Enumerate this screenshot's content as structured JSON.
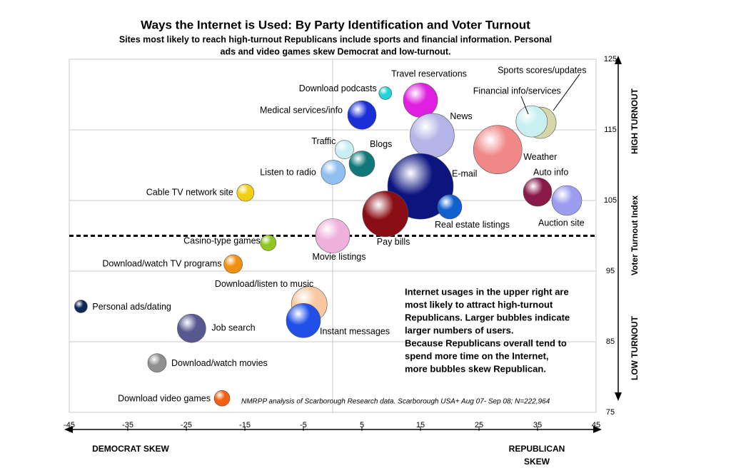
{
  "chart_data": {
    "type": "bubble",
    "title": "Ways the Internet is Used: By Party Identification and Voter Turnout",
    "subtitle": [
      "Sites most likely to reach high-turnout Republicans include sports and financial information. Personal",
      "ads and video games skew Democrat and low-turnout."
    ],
    "y_label": "Voter Turnout Index",
    "y_high_label": "HIGH  TURNOUT",
    "y_low_label": "LOW  TURNOUT",
    "x_left_label": "DEMOCRAT SKEW",
    "x_right_label": [
      "REPUBLICAN",
      "SKEW"
    ],
    "annotation": [
      "Internet usages in the upper right are",
      "most likely to attract high-turnout",
      "Republicans. Larger bubbles indicate",
      "larger numbers of users.",
      "Because Republicans overall tend to",
      "spend more time on the Internet,",
      "more bubbles skew Republican."
    ],
    "source": "NMRPP analysis of Scarborough Research data. Scarborough USA+ Aug 07- Sep 08; N=222,964",
    "xlim": [
      -45,
      45
    ],
    "xticks": [
      -45,
      -35,
      -25,
      -15,
      -5,
      5,
      15,
      25,
      35,
      45
    ],
    "ylim": [
      75,
      125
    ],
    "yticks": [
      75,
      85,
      95,
      105,
      115,
      125
    ],
    "reference_y": 100,
    "grid": true,
    "points": [
      {
        "name": "Download podcasts",
        "x": 9,
        "y": 120.2,
        "size": 9,
        "color": "#22d3d8"
      },
      {
        "name": "Travel reservations",
        "x": 15,
        "y": 119.2,
        "size": 24,
        "color": "#e020e0"
      },
      {
        "name": "Medical services/info",
        "x": 5,
        "y": 117.1,
        "size": 20,
        "color": "#1a2fd8"
      },
      {
        "name": "News",
        "x": 17,
        "y": 114.2,
        "size": 31,
        "color": "#b4b4e8"
      },
      {
        "name": "Sports scores/updates",
        "x": 35.5,
        "y": 116,
        "size": 22,
        "color": "#d6d6a8"
      },
      {
        "name": "Financial info/services",
        "x": 34,
        "y": 116.2,
        "size": 22,
        "color": "#c8f0f0"
      },
      {
        "name": "Weather",
        "x": 28.2,
        "y": 112.2,
        "size": 34,
        "color": "#f08888"
      },
      {
        "name": "Traffic",
        "x": 2,
        "y": 112.2,
        "size": 13,
        "color": "#c8f0f4"
      },
      {
        "name": "Blogs",
        "x": 5,
        "y": 110.2,
        "size": 18,
        "color": "#107878"
      },
      {
        "name": "Listen to radio",
        "x": 0.1,
        "y": 109,
        "size": 17,
        "color": "#90c0f0"
      },
      {
        "name": "E-mail",
        "x": 15,
        "y": 107,
        "size": 46,
        "color": "#0c1480"
      },
      {
        "name": "Auto info",
        "x": 35,
        "y": 106.2,
        "size": 20,
        "color": "#8a1a4a"
      },
      {
        "name": "Auction site",
        "x": 40,
        "y": 105,
        "size": 21,
        "color": "#9c9cf0"
      },
      {
        "name": "Real estate listings",
        "x": 20,
        "y": 104.1,
        "size": 17,
        "color": "#1060d0"
      },
      {
        "name": "Pay bills",
        "x": 9,
        "y": 103.1,
        "size": 32,
        "color": "#8a0c14"
      },
      {
        "name": "Cable TV network site",
        "x": -14.9,
        "y": 106.1,
        "size": 12,
        "color": "#f0d010"
      },
      {
        "name": "Movie listings",
        "x": 0,
        "y": 100,
        "size": 24,
        "color": "#f0b0dc"
      },
      {
        "name": "Casino-type games",
        "x": -11,
        "y": 99,
        "size": 11,
        "color": "#90c820"
      },
      {
        "name": "Download/watch TV programs",
        "x": -17,
        "y": 96,
        "size": 13,
        "color": "#f09010"
      },
      {
        "name": "Download/listen to music",
        "x": -4,
        "y": 90.3,
        "size": 25,
        "color": "#f8c8a0"
      },
      {
        "name": "Instant messages",
        "x": -5,
        "y": 88,
        "size": 24,
        "color": "#2050e8"
      },
      {
        "name": "Personal ads/dating",
        "x": -43,
        "y": 90,
        "size": 9,
        "color": "#102858"
      },
      {
        "name": "Job search",
        "x": -24.1,
        "y": 86.9,
        "size": 20,
        "color": "#585890"
      },
      {
        "name": "Download/watch movies",
        "x": -30,
        "y": 82,
        "size": 13,
        "color": "#909090"
      },
      {
        "name": "Download video games",
        "x": -18.9,
        "y": 77,
        "size": 11,
        "color": "#f06010"
      }
    ]
  }
}
